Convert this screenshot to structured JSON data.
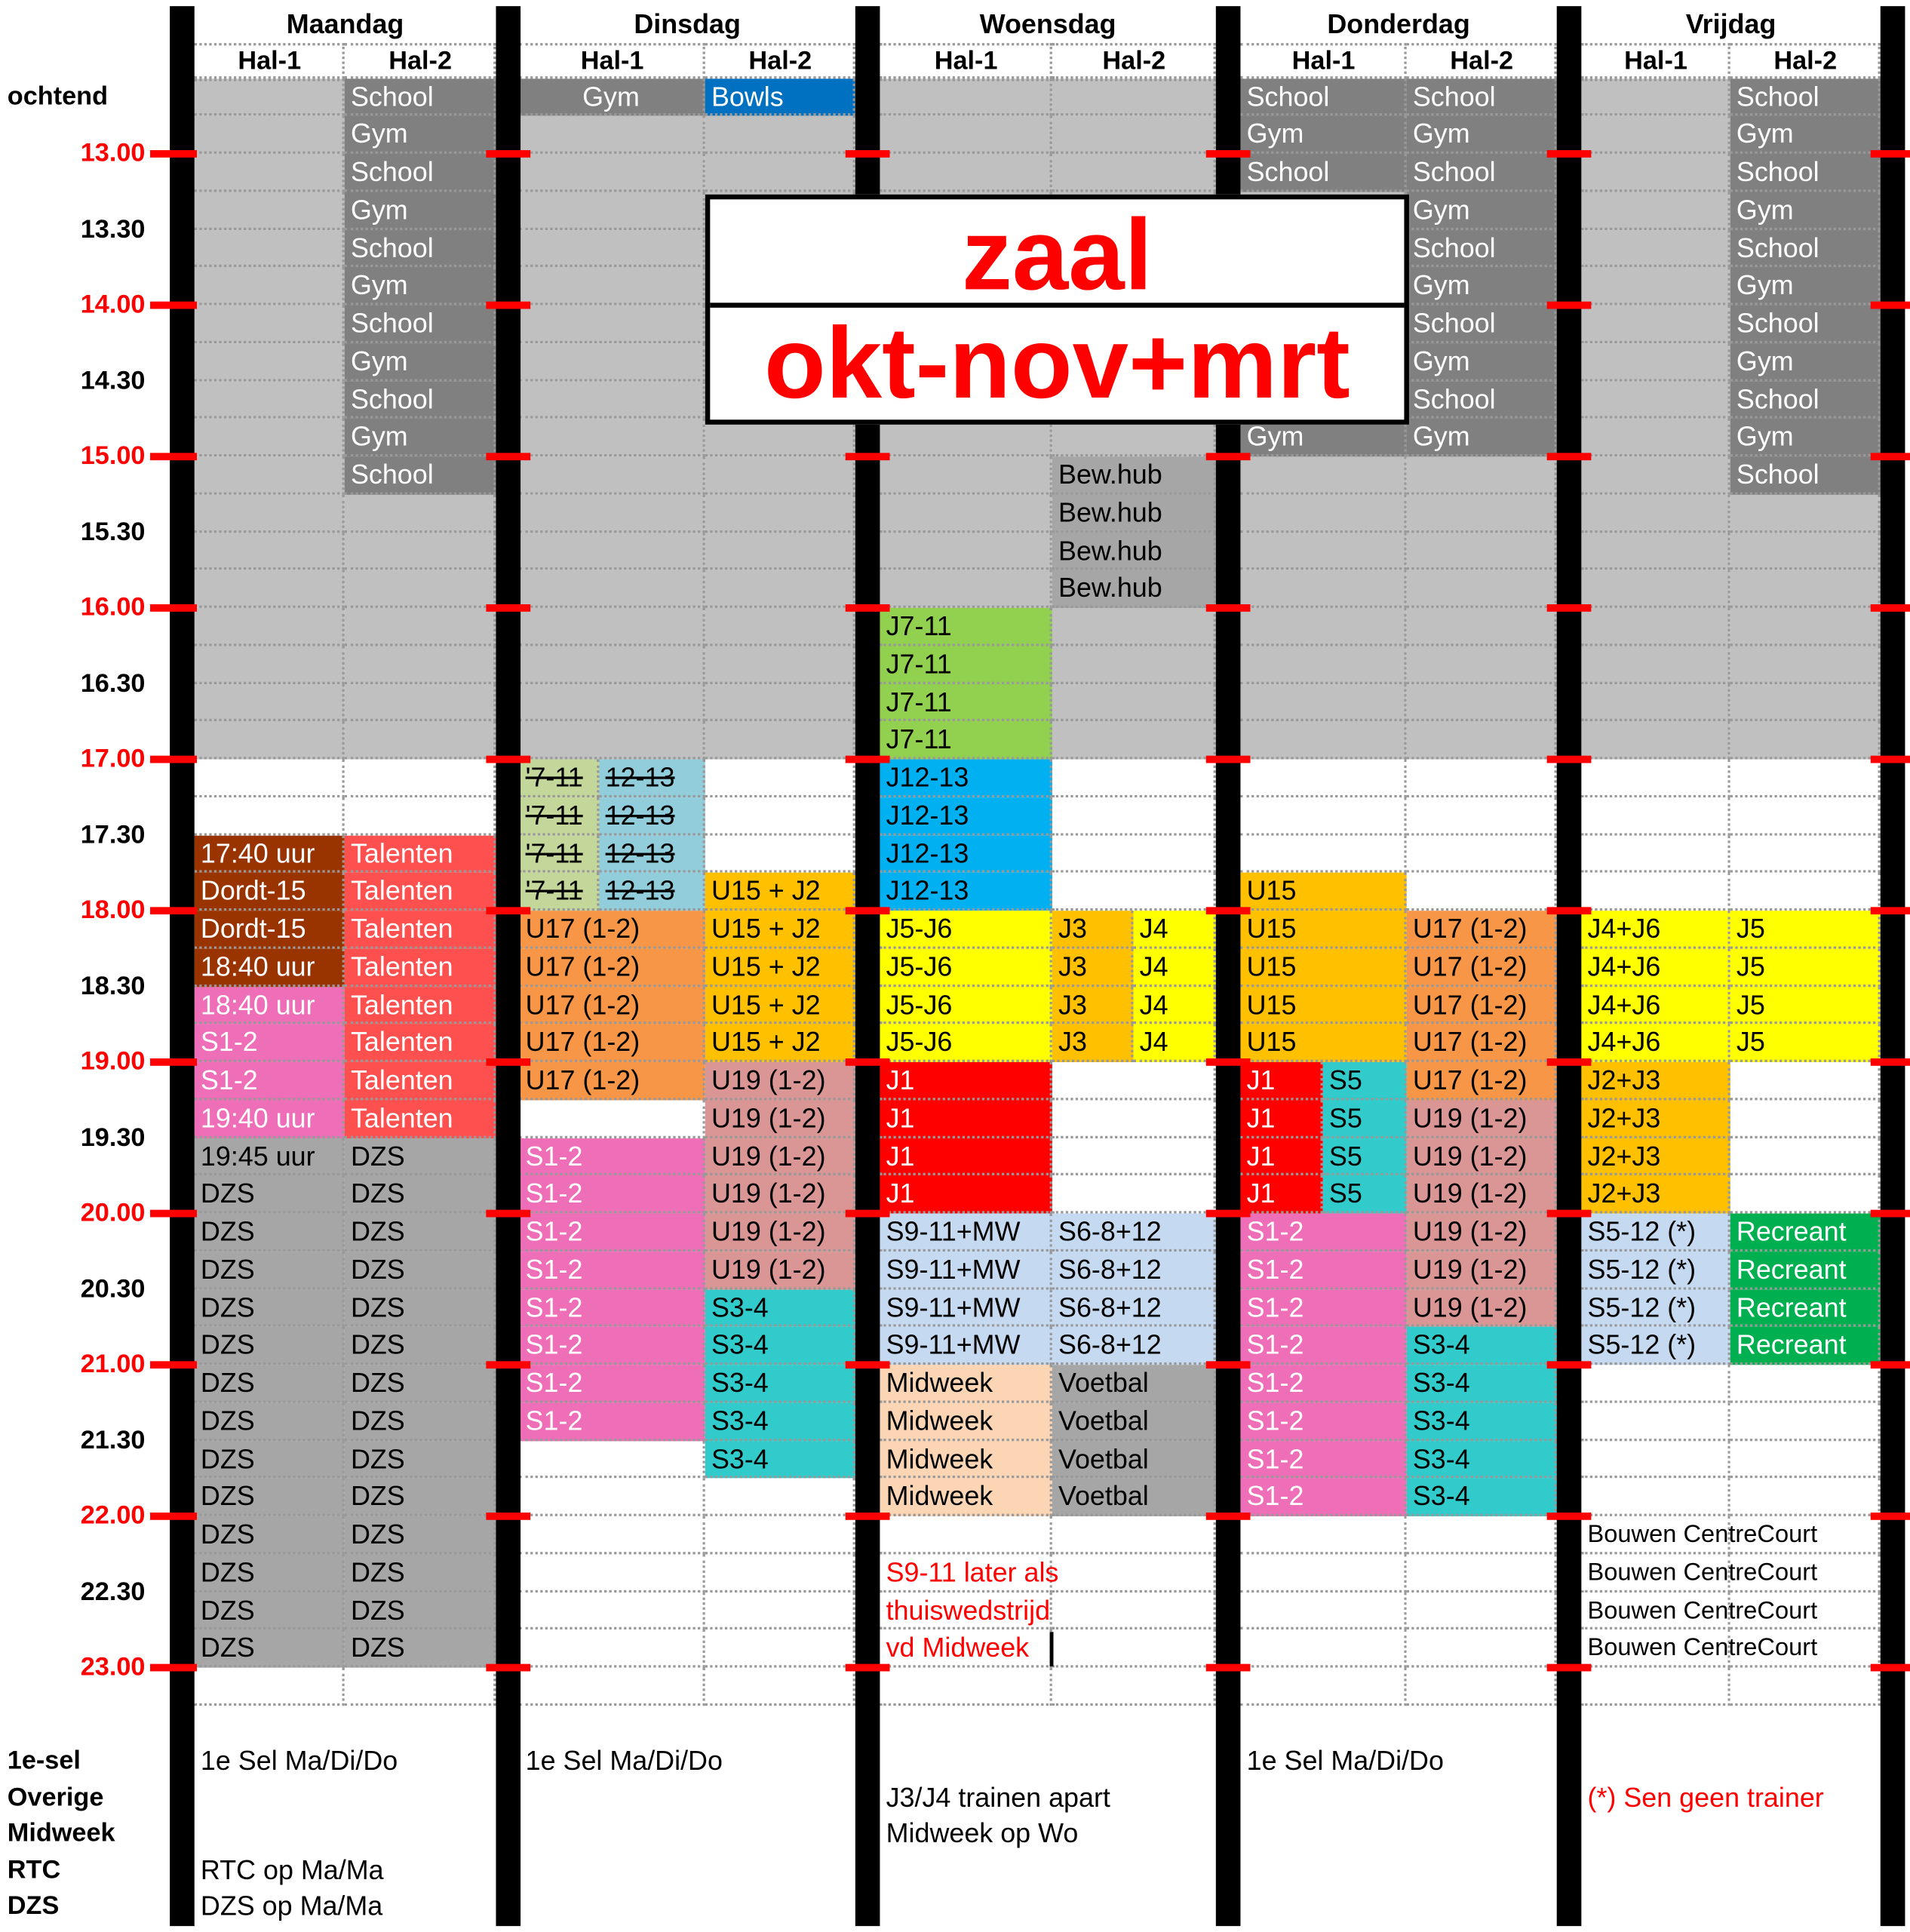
{
  "colors": {
    "light_grey": "#c0c0c0",
    "dark_grey": "#808080",
    "mid_grey": "#a6a6a6",
    "hour_red": "#ff0000"
  },
  "days": [
    {
      "key": "ma",
      "name": "Maandag",
      "halls": [
        "Hal-1",
        "Hal-2"
      ]
    },
    {
      "key": "di",
      "name": "Dinsdag",
      "halls": [
        "Hal-1",
        "Hal-2"
      ]
    },
    {
      "key": "wo",
      "name": "Woensdag",
      "halls": [
        "Hal-1",
        "Hal-2"
      ]
    },
    {
      "key": "do",
      "name": "Donderdag",
      "halls": [
        "Hal-1",
        "Hal-2"
      ]
    },
    {
      "key": "vr",
      "name": "Vrijdag",
      "halls": [
        "Hal-1",
        "Hal-2"
      ]
    }
  ],
  "time_labels": [
    {
      "label": "ochtend",
      "hour": false
    },
    {
      "label": "13.00",
      "hour": true
    },
    {
      "label": "13.30",
      "hour": false
    },
    {
      "label": "14.00",
      "hour": true
    },
    {
      "label": "14.30",
      "hour": false
    },
    {
      "label": "15.00",
      "hour": true
    },
    {
      "label": "15.30",
      "hour": false
    },
    {
      "label": "16.00",
      "hour": true
    },
    {
      "label": "16.30",
      "hour": false
    },
    {
      "label": "17.00",
      "hour": true
    },
    {
      "label": "17.30",
      "hour": false
    },
    {
      "label": "18.00",
      "hour": true
    },
    {
      "label": "18.30",
      "hour": false
    },
    {
      "label": "19.00",
      "hour": true
    },
    {
      "label": "19.30",
      "hour": false
    },
    {
      "label": "20.00",
      "hour": true
    },
    {
      "label": "20.30",
      "hour": false
    },
    {
      "label": "21.00",
      "hour": true
    },
    {
      "label": "21.30",
      "hour": false
    },
    {
      "label": "22.00",
      "hour": true
    },
    {
      "label": "22.30",
      "hour": false
    },
    {
      "label": "23.00",
      "hour": true
    }
  ],
  "title_box": {
    "line1": "zaal",
    "line2": "okt-nov+mrt"
  },
  "blocks": [
    {
      "col": "ma2",
      "row": 0,
      "bg": "#808080",
      "fg": "#fff",
      "texts": [
        "School",
        "Gym",
        "School",
        "Gym",
        "School",
        "Gym",
        "School",
        "Gym",
        "School",
        "Gym",
        "School"
      ]
    },
    {
      "col": "ma1",
      "row": 20,
      "bg": "#993300",
      "fg": "#fff",
      "texts": [
        "17:40 uur",
        "Dordt-15",
        "Dordt-15",
        "18:40 uur"
      ]
    },
    {
      "col": "ma1",
      "row": 24,
      "bg": "#ee6eb8",
      "fg": "#fff",
      "texts": [
        "18:40 uur",
        "S1-2",
        "S1-2",
        "19:40 uur"
      ]
    },
    {
      "col": "ma1",
      "row": 28,
      "bg": "#a6a6a6",
      "fg": "#000",
      "texts": [
        "19:45 uur",
        "DZS",
        "DZS",
        "DZS",
        "DZS",
        "DZS",
        "DZS",
        "DZS",
        "DZS",
        "DZS",
        "DZS",
        "DZS",
        "DZS",
        "DZS"
      ]
    },
    {
      "col": "ma2",
      "row": 20,
      "bg": "#ff5050",
      "fg": "#fff",
      "texts": [
        "Talenten",
        "Talenten",
        "Talenten",
        "Talenten",
        "Talenten",
        "Talenten",
        "Talenten",
        "Talenten"
      ]
    },
    {
      "col": "ma2",
      "row": 28,
      "bg": "#a6a6a6",
      "fg": "#000",
      "texts": [
        "DZS",
        "DZS",
        "DZS",
        "DZS",
        "DZS",
        "DZS",
        "DZS",
        "DZS",
        "DZS",
        "DZS",
        "DZS",
        "DZS",
        "DZS",
        "DZS"
      ]
    },
    {
      "col": "di1",
      "row": 0,
      "bg": "#808080",
      "fg": "#fff",
      "center": true,
      "texts": [
        "Gym"
      ]
    },
    {
      "col": "di2",
      "row": 0,
      "bg": "#0070c0",
      "fg": "#fff",
      "texts": [
        "Bowls"
      ]
    },
    {
      "col": "di1a",
      "row": 18,
      "bg": "#c4d79b",
      "fg": "#000",
      "strike": true,
      "texts": [
        "'7-11",
        "'7-11",
        "'7-11",
        "'7-11"
      ]
    },
    {
      "col": "di1b",
      "row": 18,
      "bg": "#92cddc",
      "fg": "#000",
      "strike": true,
      "texts": [
        "12-13",
        "12-13",
        "12-13",
        "12-13"
      ]
    },
    {
      "col": "di2",
      "row": 21,
      "bg": "#ffc000",
      "fg": "#000",
      "texts": [
        "U15 + J2",
        "U15 + J2",
        "U15 + J2",
        "U15 + J2",
        "U15 + J2"
      ]
    },
    {
      "col": "di1",
      "row": 22,
      "bg": "#f79646",
      "fg": "#000",
      "texts": [
        "U17 (1-2)",
        "U17 (1-2)",
        "U17 (1-2)",
        "U17 (1-2)",
        "U17 (1-2)"
      ]
    },
    {
      "col": "di2",
      "row": 26,
      "bg": "#da9694",
      "fg": "#000",
      "texts": [
        "U19 (1-2)",
        "U19 (1-2)",
        "U19 (1-2)",
        "U19 (1-2)",
        "U19 (1-2)",
        "U19 (1-2)"
      ]
    },
    {
      "col": "di2",
      "row": 32,
      "bg": "#31cbcb",
      "fg": "#000",
      "texts": [
        "S3-4",
        "S3-4",
        "S3-4",
        "S3-4",
        "S3-4"
      ]
    },
    {
      "col": "di1",
      "row": 28,
      "bg": "#ee6eb8",
      "fg": "#fff",
      "texts": [
        "S1-2",
        "S1-2",
        "S1-2",
        "S1-2",
        "S1-2",
        "S1-2",
        "S1-2",
        "S1-2"
      ]
    },
    {
      "col": "wo2",
      "row": 10,
      "bg": "#a6a6a6",
      "fg": "#000",
      "texts": [
        "Bew.hub",
        "Bew.hub",
        "Bew.hub",
        "Bew.hub"
      ]
    },
    {
      "col": "wo1",
      "row": 14,
      "bg": "#92d050",
      "fg": "#000",
      "texts": [
        "J7-11",
        "J7-11",
        "J7-11",
        "J7-11"
      ]
    },
    {
      "col": "wo1",
      "row": 18,
      "bg": "#00b0f0",
      "fg": "#000",
      "texts": [
        "J12-13",
        "J12-13",
        "J12-13",
        "J12-13"
      ]
    },
    {
      "col": "wo1",
      "row": 22,
      "bg": "#ffff00",
      "fg": "#000",
      "texts": [
        "J5-J6",
        "J5-J6",
        "J5-J6",
        "J5-J6"
      ]
    },
    {
      "col": "wo2a",
      "row": 22,
      "bg": "#ffc000",
      "fg": "#000",
      "texts": [
        "J3",
        "J3",
        "J3",
        "J3"
      ]
    },
    {
      "col": "wo2b",
      "row": 22,
      "bg": "#ffff00",
      "fg": "#000",
      "texts": [
        "J4",
        "J4",
        "J4",
        "J4"
      ]
    },
    {
      "col": "wo1",
      "row": 26,
      "bg": "#ff0000",
      "fg": "#fff",
      "texts": [
        "J1",
        "J1",
        "J1",
        "J1"
      ]
    },
    {
      "col": "wo1",
      "row": 30,
      "bg": "#c5d9f1",
      "fg": "#000",
      "texts": [
        "S9-11+MW",
        "S9-11+MW",
        "S9-11+MW",
        "S9-11+MW"
      ]
    },
    {
      "col": "wo2",
      "row": 30,
      "bg": "#c5d9f1",
      "fg": "#000",
      "texts": [
        "S6-8+12",
        "S6-8+12",
        "S6-8+12",
        "S6-8+12"
      ]
    },
    {
      "col": "wo1",
      "row": 34,
      "bg": "#fcd5b4",
      "fg": "#000",
      "texts": [
        "Midweek",
        "Midweek",
        "Midweek",
        "Midweek"
      ]
    },
    {
      "col": "wo2",
      "row": 34,
      "bg": "#a6a6a6",
      "fg": "#000",
      "texts": [
        "Voetbal",
        "Voetbal",
        "Voetbal",
        "Voetbal"
      ]
    },
    {
      "col": "wo1",
      "row": 39,
      "bg": "#ffffff",
      "fg": "#ff0000",
      "plain": true,
      "texts": [
        "S9-11 later als",
        "thuiswedstrijd",
        "vd Midweek"
      ]
    },
    {
      "col": "do1",
      "row": 0,
      "bg": "#808080",
      "fg": "#fff",
      "texts": [
        "School",
        "Gym",
        "School"
      ]
    },
    {
      "col": "do1",
      "row": 9,
      "bg": "#808080",
      "fg": "#fff",
      "texts": [
        "Gym"
      ]
    },
    {
      "col": "do2",
      "row": 0,
      "bg": "#808080",
      "fg": "#fff",
      "texts": [
        "School",
        "Gym",
        "School",
        "Gym",
        "School",
        "Gym",
        "School",
        "Gym",
        "School",
        "Gym"
      ]
    },
    {
      "col": "do1",
      "row": 21,
      "bg": "#ffc000",
      "fg": "#000",
      "texts": [
        "U15",
        "U15",
        "U15",
        "U15",
        "U15"
      ]
    },
    {
      "col": "do2",
      "row": 22,
      "bg": "#f79646",
      "fg": "#000",
      "texts": [
        "U17 (1-2)",
        "U17 (1-2)",
        "U17 (1-2)",
        "U17 (1-2)",
        "U17 (1-2)"
      ]
    },
    {
      "col": "do2",
      "row": 27,
      "bg": "#da9694",
      "fg": "#000",
      "texts": [
        "U19 (1-2)",
        "U19 (1-2)",
        "U19 (1-2)",
        "U19 (1-2)",
        "U19 (1-2)",
        "U19 (1-2)"
      ]
    },
    {
      "col": "do2",
      "row": 33,
      "bg": "#31cbcb",
      "fg": "#000",
      "texts": [
        "S3-4",
        "S3-4",
        "S3-4",
        "S3-4",
        "S3-4"
      ]
    },
    {
      "col": "do1a",
      "row": 26,
      "bg": "#ff0000",
      "fg": "#fff",
      "texts": [
        "J1",
        "J1",
        "J1",
        "J1"
      ]
    },
    {
      "col": "do1b",
      "row": 26,
      "bg": "#31cbcb",
      "fg": "#000",
      "texts": [
        "S5",
        "S5",
        "S5",
        "S5"
      ]
    },
    {
      "col": "do1",
      "row": 30,
      "bg": "#ee6eb8",
      "fg": "#fff",
      "texts": [
        "S1-2",
        "S1-2",
        "S1-2",
        "S1-2",
        "S1-2",
        "S1-2",
        "S1-2",
        "S1-2"
      ]
    },
    {
      "col": "vr2",
      "row": 0,
      "bg": "#808080",
      "fg": "#fff",
      "texts": [
        "School",
        "Gym",
        "School",
        "Gym",
        "School",
        "Gym",
        "School",
        "Gym",
        "School",
        "Gym",
        "School"
      ]
    },
    {
      "col": "vr1",
      "row": 22,
      "bg": "#ffff00",
      "fg": "#000",
      "texts": [
        "J4+J6",
        "J4+J6",
        "J4+J6",
        "J4+J6"
      ]
    },
    {
      "col": "vr2",
      "row": 22,
      "bg": "#ffff00",
      "fg": "#000",
      "texts": [
        "J5",
        "J5",
        "J5",
        "J5"
      ]
    },
    {
      "col": "vr1",
      "row": 26,
      "bg": "#ffc000",
      "fg": "#000",
      "texts": [
        "J2+J3",
        "J2+J3",
        "J2+J3",
        "J2+J3"
      ]
    },
    {
      "col": "vr1",
      "row": 30,
      "bg": "#c5d9f1",
      "fg": "#000",
      "texts": [
        "S5-12 (*)",
        "S5-12 (*)",
        "S5-12 (*)",
        "S5-12 (*)"
      ]
    },
    {
      "col": "vr2",
      "row": 30,
      "bg": "#00b050",
      "fg": "#fff",
      "texts": [
        "Recreant",
        "Recreant",
        "Recreant",
        "Recreant"
      ]
    },
    {
      "col": "vr12",
      "row": 38,
      "bg": "#ffffff",
      "fg": "#000",
      "plain": true,
      "small": true,
      "texts": [
        "Bouwen CentreCourt",
        "Bouwen CentreCourt",
        "Bouwen CentreCourt",
        "Bouwen CentreCourt"
      ]
    }
  ],
  "notes": {
    "labels": [
      "1e-sel",
      "Overige",
      "Midweek",
      "RTC",
      "DZS"
    ],
    "items": [
      {
        "day": "ma",
        "line": 0,
        "text": "1e Sel Ma/Di/Do"
      },
      {
        "day": "ma",
        "line": 3,
        "text": "RTC op Ma/Ma"
      },
      {
        "day": "ma",
        "line": 4,
        "text": "DZS op Ma/Ma"
      },
      {
        "day": "di",
        "line": 0,
        "text": "1e Sel Ma/Di/Do"
      },
      {
        "day": "wo",
        "line": 1,
        "text": "J3/J4 trainen apart"
      },
      {
        "day": "wo",
        "line": 2,
        "text": "Midweek op Wo"
      },
      {
        "day": "do",
        "line": 0,
        "text": "1e Sel Ma/Di/Do"
      },
      {
        "day": "vr",
        "line": 1,
        "text": "(*) Sen geen trainer",
        "color": "#ff0000"
      }
    ]
  }
}
